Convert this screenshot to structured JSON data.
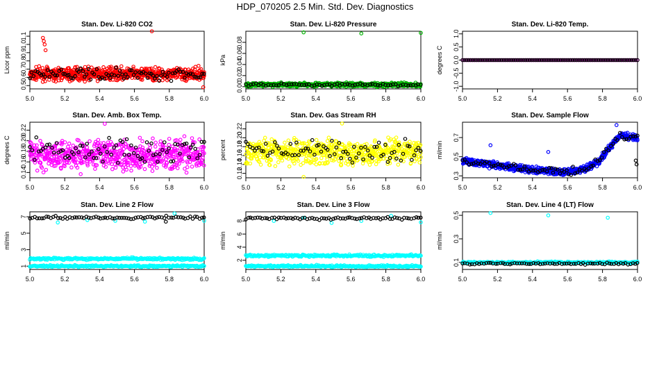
{
  "figure": {
    "title": "HDP_070205  2.5 Min. Std. Dev. Diagnostics"
  },
  "chart_data": [
    {
      "type": "scatter",
      "title": "Stan. Dev. Li-820 CO2",
      "xlabel": "",
      "ylabel": "Licor ppm",
      "xlim": [
        5.0,
        6.0
      ],
      "ylim": [
        0.46,
        1.16
      ],
      "xticks": [
        "5.0",
        "5.2",
        "5.4",
        "5.6",
        "5.8",
        "6.0"
      ],
      "yticks": [
        "0.5",
        "0.6",
        "0.7",
        "0.8",
        "0.9",
        "1.0",
        "1.1"
      ],
      "series": [
        {
          "name": "primary",
          "color": "#ff0000",
          "n": 700,
          "base": 0.64,
          "spread": 0.055,
          "outliers": [
            [
              5.075,
              1.08
            ],
            [
              5.08,
              1.04
            ],
            [
              5.085,
              1.0
            ],
            [
              5.09,
              0.93
            ],
            [
              5.7,
              1.19
            ],
            [
              5.995,
              0.48
            ]
          ]
        },
        {
          "name": "secondary",
          "color": "#000000",
          "n": 90,
          "base": 0.64,
          "spread": 0.05,
          "outliers": []
        }
      ]
    },
    {
      "type": "scatter",
      "title": "Stan. Dev. Li-820 Pressure",
      "xlabel": "",
      "ylabel": "kPa",
      "xlim": [
        5.0,
        6.0
      ],
      "ylim": [
        -0.004,
        0.1
      ],
      "xticks": [
        "5.0",
        "5.2",
        "5.4",
        "5.6",
        "5.8",
        "6.0"
      ],
      "yticks": [
        "0.00",
        "0.02",
        "0.04",
        "0.06",
        "0.08"
      ],
      "series": [
        {
          "name": "primary",
          "color": "#00b400",
          "n": 600,
          "base": 0.0035,
          "spread": 0.0025,
          "outliers": [
            [
              5.33,
              0.098
            ],
            [
              5.66,
              0.096
            ],
            [
              6.0,
              0.097
            ]
          ]
        },
        {
          "name": "secondary",
          "color": "#000000",
          "n": 70,
          "base": 0.0035,
          "spread": 0.002,
          "outliers": []
        }
      ]
    },
    {
      "type": "scatter",
      "title": "Stan. Dev. Li-820 Temp.",
      "xlabel": "",
      "ylabel": "degrees C",
      "xlim": [
        5.0,
        6.0
      ],
      "ylim": [
        -1.1,
        1.1
      ],
      "xticks": [
        "5.0",
        "5.2",
        "5.4",
        "5.6",
        "5.8",
        "6.0"
      ],
      "yticks": [
        "-1.0",
        "-0.5",
        "0.0",
        "0.5",
        "1.0"
      ],
      "series": [
        {
          "name": "primary",
          "color": "#ff00ff",
          "n": 110,
          "base": 0.0,
          "spread": 0.0,
          "outliers": []
        },
        {
          "name": "secondary",
          "color": "#000000",
          "n": 90,
          "base": 0.0,
          "spread": 0.0,
          "outliers": []
        }
      ]
    },
    {
      "type": "scatter",
      "title": "Stan. Dev. Amb. Box Temp.",
      "xlabel": "",
      "ylabel": "degrees C",
      "xlim": [
        5.0,
        6.0
      ],
      "ylim": [
        0.13,
        0.235
      ],
      "xticks": [
        "5.0",
        "5.2",
        "5.4",
        "5.6",
        "5.8",
        "6.0"
      ],
      "yticks": [
        "0.14",
        "0.16",
        "0.18",
        "0.20",
        "0.22"
      ],
      "series": [
        {
          "name": "primary",
          "color": "#ff00ff",
          "n": 650,
          "base": 0.173,
          "spread": 0.02,
          "outliers": [
            [
              5.43,
              0.232
            ]
          ]
        },
        {
          "name": "secondary",
          "color": "#000000",
          "n": 80,
          "base": 0.18,
          "spread": 0.018,
          "outliers": []
        }
      ]
    },
    {
      "type": "scatter",
      "title": "Stan. Dev. Gas Stream RH",
      "xlabel": "",
      "ylabel": "percent",
      "xlim": [
        5.0,
        6.0
      ],
      "ylim": [
        0.11,
        0.235
      ],
      "xticks": [
        "5.0",
        "5.2",
        "5.4",
        "5.6",
        "5.8",
        "6.0"
      ],
      "yticks": [
        "0.12",
        "0.14",
        "0.16",
        "0.18",
        "0.20",
        "0.22"
      ],
      "series": [
        {
          "name": "primary",
          "color": "#ffff00",
          "n": 650,
          "base": 0.168,
          "spread": 0.02,
          "outliers": [
            [
              5.55,
              0.232
            ],
            [
              5.33,
              0.112
            ]
          ]
        },
        {
          "name": "secondary",
          "color": "#000000",
          "n": 80,
          "base": 0.172,
          "spread": 0.02,
          "outliers": []
        }
      ]
    },
    {
      "type": "scatter",
      "title": "Stan. Dev. Sample Flow",
      "xlabel": "",
      "ylabel": "ml/min",
      "xlim": [
        5.0,
        6.0
      ],
      "ylim": [
        0.28,
        0.86
      ],
      "xticks": [
        "5.0",
        "5.2",
        "5.4",
        "5.6",
        "5.8",
        "6.0"
      ],
      "yticks": [
        "0.3",
        "0.5",
        "0.7"
      ],
      "trend": [
        [
          5.0,
          0.46
        ],
        [
          5.2,
          0.41
        ],
        [
          5.4,
          0.36
        ],
        [
          5.6,
          0.34
        ],
        [
          5.7,
          0.37
        ],
        [
          5.78,
          0.45
        ],
        [
          5.85,
          0.62
        ],
        [
          5.9,
          0.72
        ],
        [
          6.0,
          0.7
        ]
      ],
      "series": [
        {
          "name": "primary",
          "color": "#0000ff",
          "n": 650,
          "base": 0,
          "spread": 0.025,
          "outliers": [
            [
              5.16,
              0.62
            ],
            [
              5.49,
              0.55
            ],
            [
              5.88,
              0.83
            ]
          ]
        },
        {
          "name": "secondary",
          "color": "#000000",
          "n": 80,
          "base": 0,
          "spread": 0.025,
          "outliers": [
            [
              5.995,
              0.42
            ],
            [
              5.99,
              0.46
            ]
          ]
        }
      ]
    },
    {
      "type": "scatter",
      "title": "Stan. Dev. Line 2 Flow",
      "xlabel": "",
      "ylabel": "ml/min",
      "xlim": [
        5.0,
        6.0
      ],
      "ylim": [
        0.6,
        7.6
      ],
      "xticks": [
        "5.0",
        "5.2",
        "5.4",
        "5.6",
        "5.8",
        "6.0"
      ],
      "yticks": [
        "1",
        "3",
        "5",
        "7"
      ],
      "bands": [
        {
          "base": 1.0,
          "spread": 0.08,
          "color": "#00ffff"
        },
        {
          "base": 1.9,
          "spread": 0.1,
          "color": "#00ffff"
        }
      ],
      "series": [
        {
          "name": "primary",
          "color": "#00ffff",
          "n": 0,
          "base": 0,
          "spread": 0,
          "outliers": [
            [
              5.16,
              6.3
            ],
            [
              5.33,
              6.6
            ],
            [
              5.49,
              6.5
            ],
            [
              5.66,
              6.4
            ],
            [
              5.83,
              7.4
            ],
            [
              6.0,
              6.5
            ]
          ]
        },
        {
          "name": "secondary",
          "color": "#000000",
          "n": 75,
          "base": 6.9,
          "spread": 0.12,
          "outliers": [
            [
              5.78,
              6.4
            ]
          ]
        }
      ]
    },
    {
      "type": "scatter",
      "title": "Stan. Dev. Line 3 Flow",
      "xlabel": "",
      "ylabel": "ml/min",
      "xlim": [
        5.0,
        6.0
      ],
      "ylim": [
        0.6,
        9.4
      ],
      "xticks": [
        "5.0",
        "5.2",
        "5.4",
        "5.6",
        "5.8",
        "6.0"
      ],
      "yticks": [
        "2",
        "4",
        "6",
        "8"
      ],
      "bands": [
        {
          "base": 1.1,
          "spread": 0.12,
          "color": "#00ffff"
        },
        {
          "base": 2.7,
          "spread": 0.12,
          "color": "#00ffff"
        }
      ],
      "series": [
        {
          "name": "primary",
          "color": "#00ffff",
          "n": 0,
          "base": 0,
          "spread": 0,
          "outliers": [
            [
              5.16,
              8.0
            ],
            [
              5.33,
              8.5
            ],
            [
              5.49,
              7.7
            ],
            [
              5.66,
              8.0
            ],
            [
              5.83,
              8.8
            ],
            [
              6.0,
              7.8
            ]
          ]
        },
        {
          "name": "secondary",
          "color": "#000000",
          "n": 75,
          "base": 8.4,
          "spread": 0.15,
          "outliers": []
        }
      ]
    },
    {
      "type": "scatter",
      "title": "Stan. Dev. Line 4 (LT) Flow",
      "xlabel": "",
      "ylabel": "ml/min",
      "xlim": [
        5.0,
        6.0
      ],
      "ylim": [
        0.04,
        0.53
      ],
      "xticks": [
        "5.0",
        "5.2",
        "5.4",
        "5.6",
        "5.8",
        "6.0"
      ],
      "yticks": [
        "0.1",
        "0.3",
        "0.5"
      ],
      "bands": [
        {
          "base": 0.1,
          "spread": 0.005,
          "color": "#00ffff"
        }
      ],
      "series": [
        {
          "name": "primary",
          "color": "#00ffff",
          "n": 0,
          "base": 0,
          "spread": 0,
          "outliers": [
            [
              5.16,
              0.52
            ],
            [
              5.49,
              0.5
            ],
            [
              5.83,
              0.48
            ]
          ]
        },
        {
          "name": "secondary",
          "color": "#000000",
          "n": 75,
          "base": 0.09,
          "spread": 0.006,
          "outliers": []
        }
      ]
    }
  ]
}
